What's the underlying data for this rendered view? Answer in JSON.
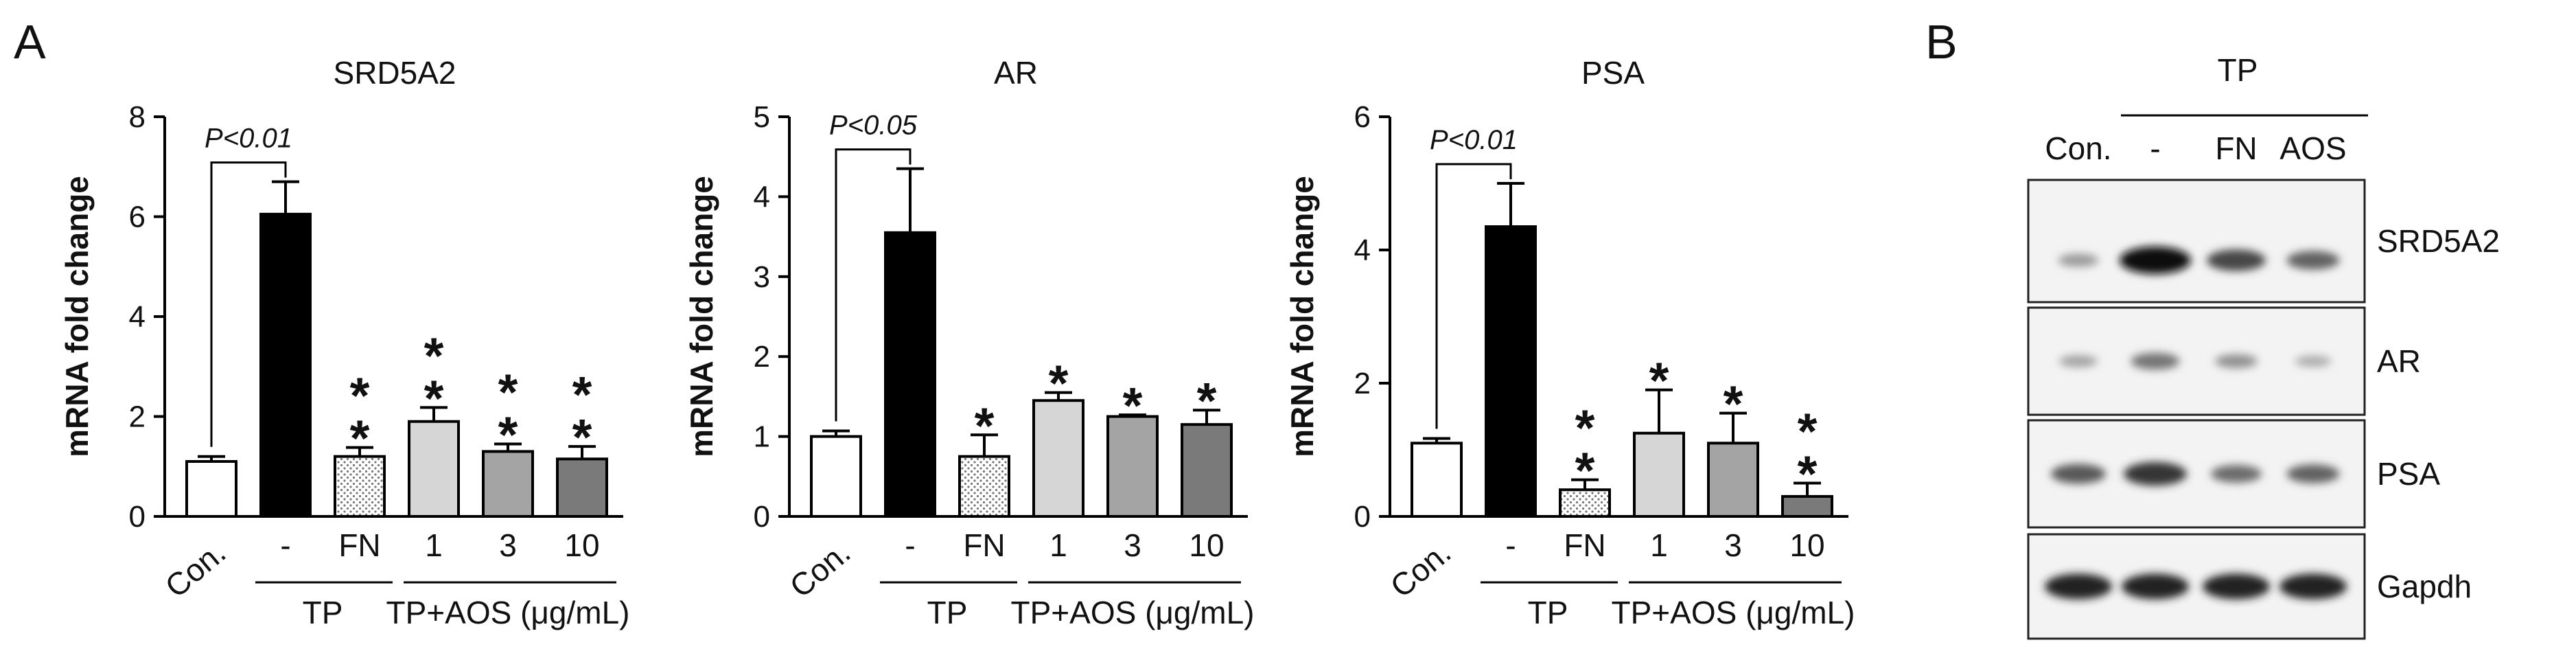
{
  "panels": {
    "a": "A",
    "b": "B"
  },
  "chart_data": [
    {
      "type": "bar",
      "title": "SRD5A2",
      "ylabel": "mRNA fold change",
      "ylim": [
        0,
        8
      ],
      "yticks": [
        "0",
        "2",
        "4",
        "6",
        "8"
      ],
      "categories": [
        "Con.",
        "-",
        "FN",
        "1",
        "3",
        "10"
      ],
      "values": [
        1.1,
        6.05,
        1.2,
        1.9,
        1.3,
        1.15
      ],
      "errors": [
        0.1,
        0.65,
        0.18,
        0.28,
        0.15,
        0.25
      ],
      "significance": [
        "",
        "",
        "**",
        "**",
        "**",
        "**"
      ],
      "pvalue": "P<0.01",
      "groups": [
        "TP",
        "TP+AOS (μg/mL)"
      ]
    },
    {
      "type": "bar",
      "title": "AR",
      "ylabel": "mRNA fold change",
      "ylim": [
        0,
        5
      ],
      "yticks": [
        "0",
        "1",
        "2",
        "3",
        "4",
        "5"
      ],
      "categories": [
        "Con.",
        "-",
        "FN",
        "1",
        "3",
        "10"
      ],
      "values": [
        1.0,
        3.55,
        0.75,
        1.45,
        1.25,
        1.15
      ],
      "errors": [
        0.07,
        0.8,
        0.27,
        0.1,
        0.02,
        0.18
      ],
      "significance": [
        "",
        "",
        "*",
        "*",
        "*",
        "*"
      ],
      "pvalue": "P<0.05",
      "groups": [
        "TP",
        "TP+AOS (μg/mL)"
      ]
    },
    {
      "type": "bar",
      "title": "PSA",
      "ylabel": "mRNA fold change",
      "ylim": [
        0,
        6
      ],
      "yticks": [
        "0",
        "2",
        "4",
        "6"
      ],
      "categories": [
        "Con.",
        "-",
        "FN",
        "1",
        "3",
        "10"
      ],
      "values": [
        1.1,
        4.35,
        0.4,
        1.25,
        1.1,
        0.3
      ],
      "errors": [
        0.07,
        0.65,
        0.15,
        0.65,
        0.45,
        0.2
      ],
      "significance": [
        "",
        "",
        "**",
        "*",
        "*",
        "**"
      ],
      "pvalue": "P<0.01",
      "groups": [
        "TP",
        "TP+AOS (μg/mL)"
      ]
    }
  ],
  "blot": {
    "group_label": "TP",
    "lanes": [
      "Con.",
      "-",
      "FN",
      "AOS"
    ],
    "rows": [
      {
        "label": "SRD5A2",
        "intensity": [
          0.25,
          1.0,
          0.7,
          0.55
        ]
      },
      {
        "label": "AR",
        "intensity": [
          0.2,
          0.45,
          0.3,
          0.15
        ]
      },
      {
        "label": "PSA",
        "intensity": [
          0.6,
          0.8,
          0.5,
          0.55
        ]
      },
      {
        "label": "Gapdh",
        "intensity": [
          0.9,
          0.9,
          0.9,
          0.9
        ]
      }
    ]
  }
}
